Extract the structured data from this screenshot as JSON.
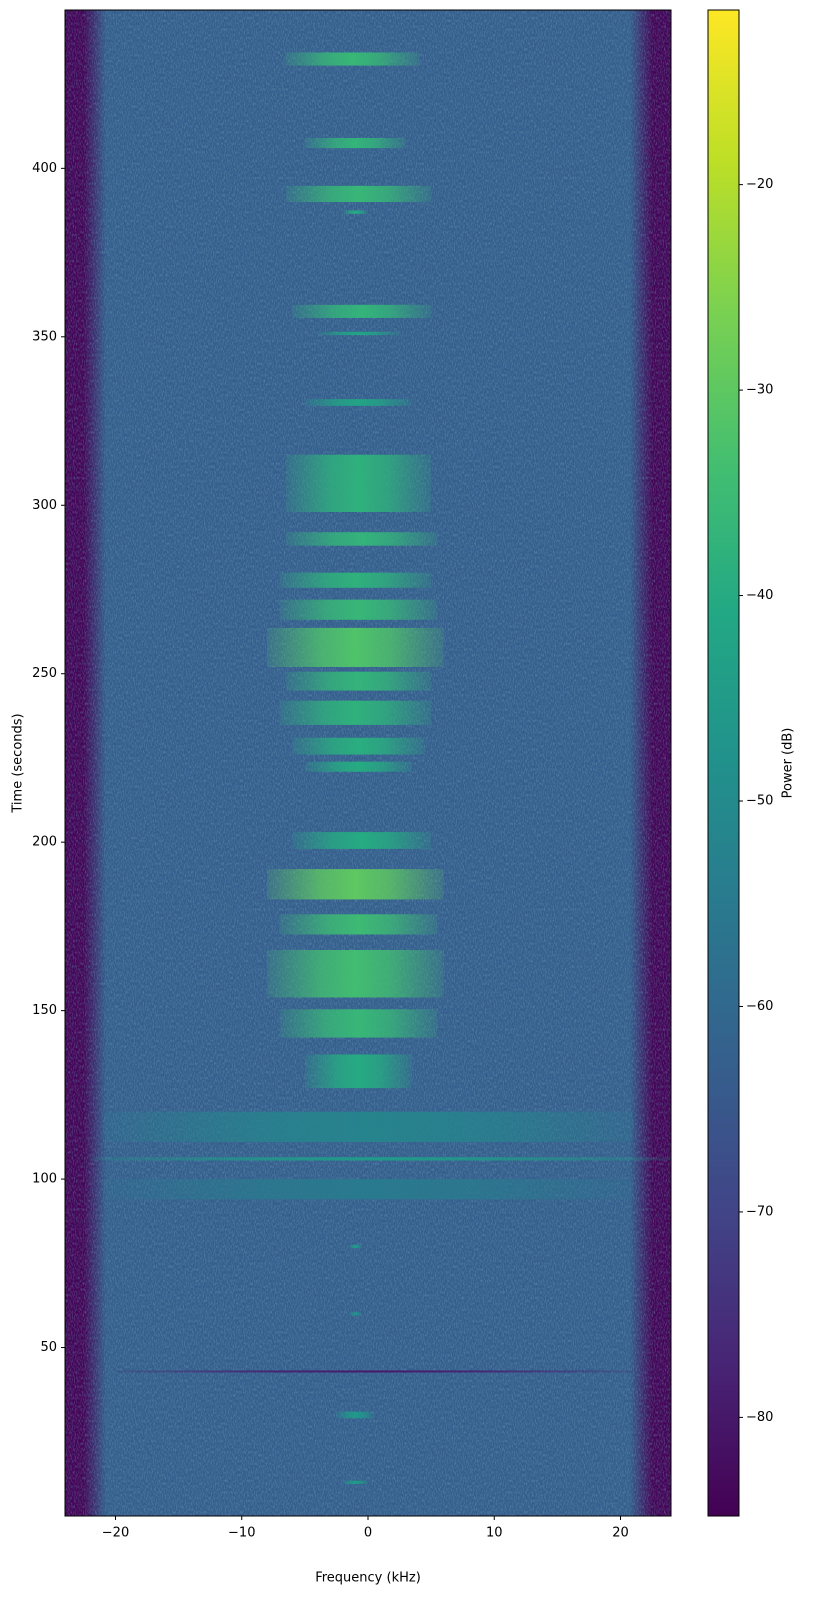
{
  "chart_data": {
    "type": "spectrogram",
    "x_label": "Frequency (kHz)",
    "y_label": "Time (seconds)",
    "colorbar_label": "Power (dB)",
    "colormap": "viridis",
    "xlim": [
      -24,
      24
    ],
    "ylim": [
      0,
      447
    ],
    "clim": [
      -84.8,
      -11.5
    ],
    "xticks": [
      {
        "value": -20,
        "label": "−20"
      },
      {
        "value": -10,
        "label": "−10"
      },
      0,
      10,
      20
    ],
    "yticks": [
      50,
      100,
      150,
      200,
      250,
      300,
      350,
      400
    ],
    "cticks": [
      {
        "value": -80,
        "label": "−80"
      },
      {
        "value": -70,
        "label": "−70"
      },
      {
        "value": -60,
        "label": "−60"
      },
      {
        "value": -50,
        "label": "−50"
      },
      {
        "value": -40,
        "label": "−40"
      },
      {
        "value": -30,
        "label": "−30"
      },
      {
        "value": -20,
        "label": "−20"
      }
    ],
    "edge_power": -84,
    "background_power": -63,
    "passband": [
      -21.6,
      21.6
    ],
    "bursts": [
      {
        "t": [
          430.5,
          434.4
        ],
        "f": [
          -6.6,
          4.1
        ],
        "power": -36
      },
      {
        "t": [
          406,
          409
        ],
        "f": [
          -5,
          3
        ],
        "power": -37
      },
      {
        "t": [
          390,
          394.8
        ],
        "f": [
          -6.5,
          5
        ],
        "power": -36
      },
      {
        "t": [
          386.5,
          387.5
        ],
        "f": [
          -2,
          0
        ],
        "power": -40
      },
      {
        "t": [
          355.6,
          359.5
        ],
        "f": [
          -6,
          5
        ],
        "power": -37
      },
      {
        "t": [
          350.5,
          351.5
        ],
        "f": [
          -4,
          2.5
        ],
        "power": -42
      },
      {
        "t": [
          329.5,
          331.5
        ],
        "f": [
          -5,
          3.5
        ],
        "power": -42
      },
      {
        "t": [
          298,
          315
        ],
        "f": [
          -6.5,
          5
        ],
        "power": -38
      },
      {
        "t": [
          288,
          292
        ],
        "f": [
          -6.5,
          5.5
        ],
        "power": -37
      },
      {
        "t": [
          275.5,
          280
        ],
        "f": [
          -7,
          5
        ],
        "power": -38
      },
      {
        "t": [
          266,
          272
        ],
        "f": [
          -7,
          5.5
        ],
        "power": -36
      },
      {
        "t": [
          252,
          263.6
        ],
        "f": [
          -8,
          6
        ],
        "power": -32
      },
      {
        "t": [
          245,
          250.6
        ],
        "f": [
          -6.5,
          5
        ],
        "power": -37
      },
      {
        "t": [
          234.8,
          242
        ],
        "f": [
          -7,
          5
        ],
        "power": -38
      },
      {
        "t": [
          226,
          231
        ],
        "f": [
          -6,
          4.5
        ],
        "power": -39
      },
      {
        "t": [
          220.9,
          223.9
        ],
        "f": [
          -5,
          3.5
        ],
        "power": -40
      },
      {
        "t": [
          198,
          203
        ],
        "f": [
          -6,
          5
        ],
        "power": -40
      },
      {
        "t": [
          183,
          192
        ],
        "f": [
          -8,
          6
        ],
        "power": -30
      },
      {
        "t": [
          172.6,
          178.6
        ],
        "f": [
          -7,
          5.5
        ],
        "power": -35
      },
      {
        "t": [
          153.9,
          168
        ],
        "f": [
          -8,
          6
        ],
        "power": -34
      },
      {
        "t": [
          142,
          150.4
        ],
        "f": [
          -7,
          5.5
        ],
        "power": -36
      },
      {
        "t": [
          127,
          137
        ],
        "f": [
          -5,
          3.5
        ],
        "power": -40
      },
      {
        "t": [
          111,
          120
        ],
        "f": [
          -21,
          21
        ],
        "power": -52
      },
      {
        "t": [
          105.5,
          106.5
        ],
        "f": [
          -22,
          24
        ],
        "power": -45
      },
      {
        "t": [
          94,
          100
        ],
        "f": [
          -21,
          21
        ],
        "power": -55
      },
      {
        "t": [
          79.5,
          80.5
        ],
        "f": [
          -1.5,
          -0.5
        ],
        "power": -45
      },
      {
        "t": [
          59.5,
          60.5
        ],
        "f": [
          -1.5,
          -0.5
        ],
        "power": -48
      },
      {
        "t": [
          42.6,
          43.2
        ],
        "f": [
          -20,
          21
        ],
        "power": -80
      },
      {
        "t": [
          29,
          31
        ],
        "f": [
          -2.5,
          0.5
        ],
        "power": -46
      },
      {
        "t": [
          9.5,
          10.5
        ],
        "f": [
          -2,
          0
        ],
        "power": -45
      }
    ]
  }
}
